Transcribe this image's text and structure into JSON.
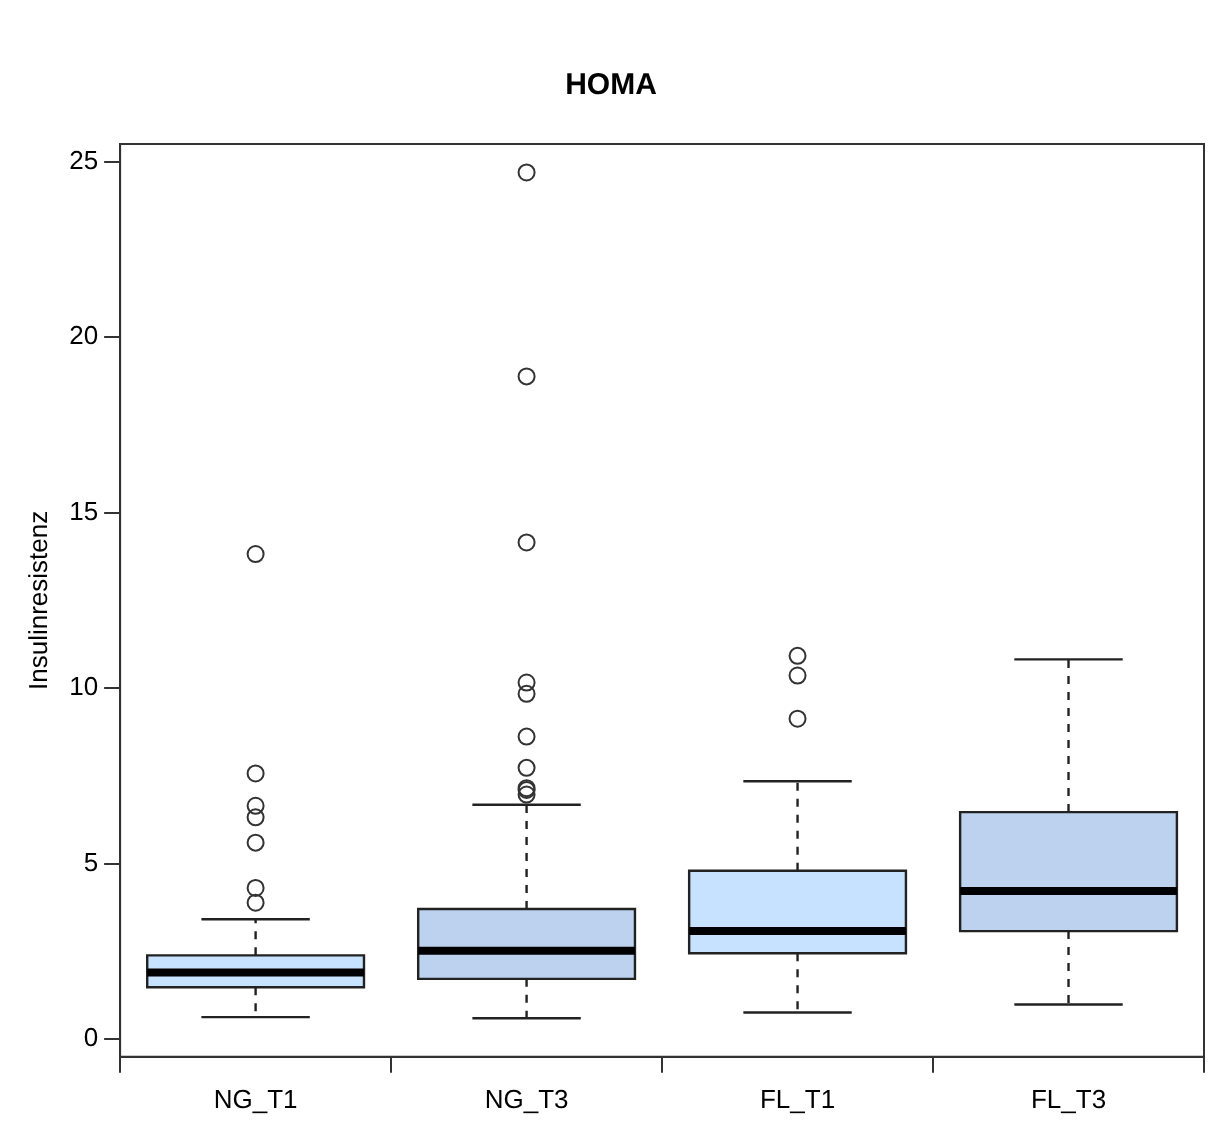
{
  "chart_data": {
    "type": "box",
    "title": "HOMA",
    "ylabel": "Insulinresistenz",
    "categories": [
      "NG_T1",
      "NG_T3",
      "FL_T1",
      "FL_T3"
    ],
    "colors": [
      "#c6e2ff",
      "#bcd2ee",
      "#c6e2ff",
      "#bcd2ee"
    ],
    "boxes": [
      {
        "low": 0.63,
        "q1": 1.48,
        "median": 1.9,
        "q3": 2.39,
        "high": 3.42,
        "outliers": [
          3.89,
          4.31,
          5.6,
          6.32,
          6.65,
          7.57,
          13.82
        ]
      },
      {
        "low": 0.6,
        "q1": 1.72,
        "median": 2.52,
        "q3": 3.71,
        "high": 6.68,
        "outliers": [
          6.97,
          7.1,
          7.15,
          7.73,
          8.62,
          9.84,
          10.16,
          14.15,
          18.88,
          24.69
        ]
      },
      {
        "low": 0.76,
        "q1": 2.45,
        "median": 3.08,
        "q3": 4.8,
        "high": 7.35,
        "outliers": [
          9.13,
          10.36,
          10.92
        ]
      },
      {
        "low": 0.99,
        "q1": 3.08,
        "median": 4.22,
        "q3": 6.47,
        "high": 10.82
      }
    ],
    "ylim": [
      -0.5,
      25.5
    ],
    "yticks": [
      0,
      5,
      10,
      15,
      20,
      25
    ],
    "grid": false,
    "legend": false
  }
}
